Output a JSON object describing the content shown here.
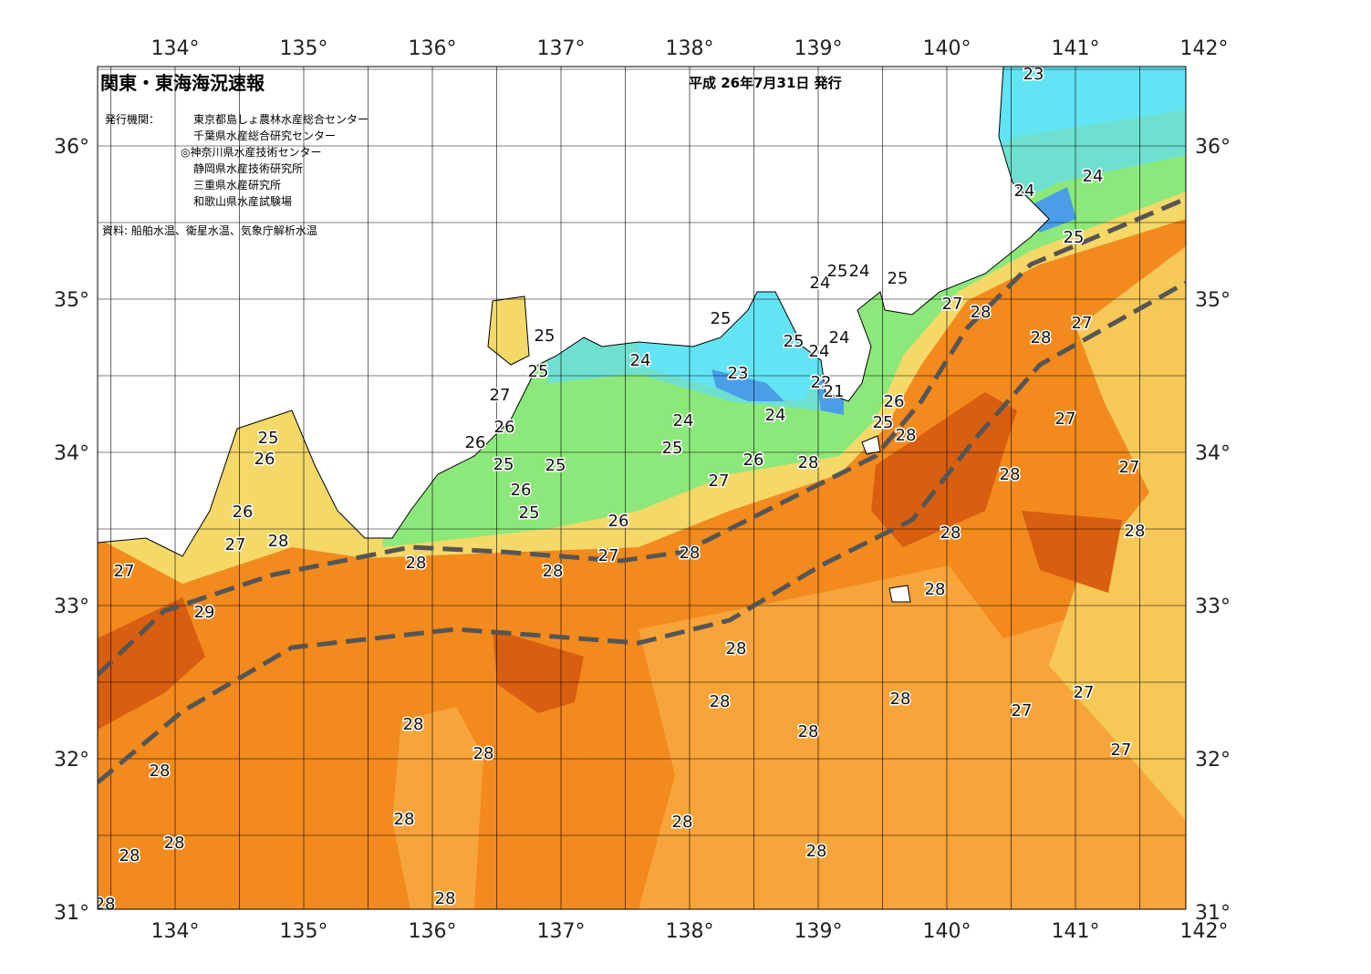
{
  "header": {
    "title": "関東・東海海況速報",
    "issue_date": "平成 26年7月31日 発行",
    "issuer_label": "発行機関：",
    "issuers": [
      "東京都島しょ農林水産総合センター",
      "千葉県水産総合研究センター",
      "◎神奈川県水産技術センター",
      "静岡県水産技術研究所",
      "三重県水産研究所",
      "和歌山県水産試験場"
    ],
    "sources": "資料: 船舶水温、衛星水温、気象庁解析水温"
  },
  "axes": {
    "lon_ticks": [
      {
        "value": 134,
        "label": "134°"
      },
      {
        "value": 135,
        "label": "135°"
      },
      {
        "value": 136,
        "label": "136°"
      },
      {
        "value": 137,
        "label": "137°"
      },
      {
        "value": 138,
        "label": "138°"
      },
      {
        "value": 139,
        "label": "139°"
      },
      {
        "value": 140,
        "label": "140°"
      },
      {
        "value": 141,
        "label": "141°"
      },
      {
        "value": 142,
        "label": "142°"
      }
    ],
    "lat_ticks": [
      {
        "value": 36,
        "label": "36°"
      },
      {
        "value": 35,
        "label": "35°"
      },
      {
        "value": 34,
        "label": "34°"
      },
      {
        "value": 33,
        "label": "33°"
      },
      {
        "value": 32,
        "label": "32°"
      },
      {
        "value": 31,
        "label": "31°"
      }
    ]
  },
  "contour_labels": [
    "23",
    "24",
    "24",
    "25",
    "27",
    "28",
    "27",
    "28",
    "25",
    "24",
    "25",
    "24",
    "25",
    "25",
    "24",
    "24",
    "25",
    "25",
    "24",
    "23",
    "22",
    "21",
    "27",
    "26",
    "26",
    "24",
    "24",
    "25",
    "28",
    "27",
    "26",
    "25",
    "26",
    "28",
    "25",
    "26",
    "25",
    "25",
    "27",
    "28",
    "27",
    "26",
    "25",
    "26",
    "26",
    "28",
    "28",
    "27",
    "28",
    "28",
    "27",
    "28",
    "28",
    "27",
    "28",
    "29",
    "28",
    "27",
    "28",
    "28",
    "27",
    "28",
    "28",
    "28",
    "27",
    "28",
    "28",
    "28",
    "28",
    "28",
    "28",
    "28",
    "28"
  ]
}
